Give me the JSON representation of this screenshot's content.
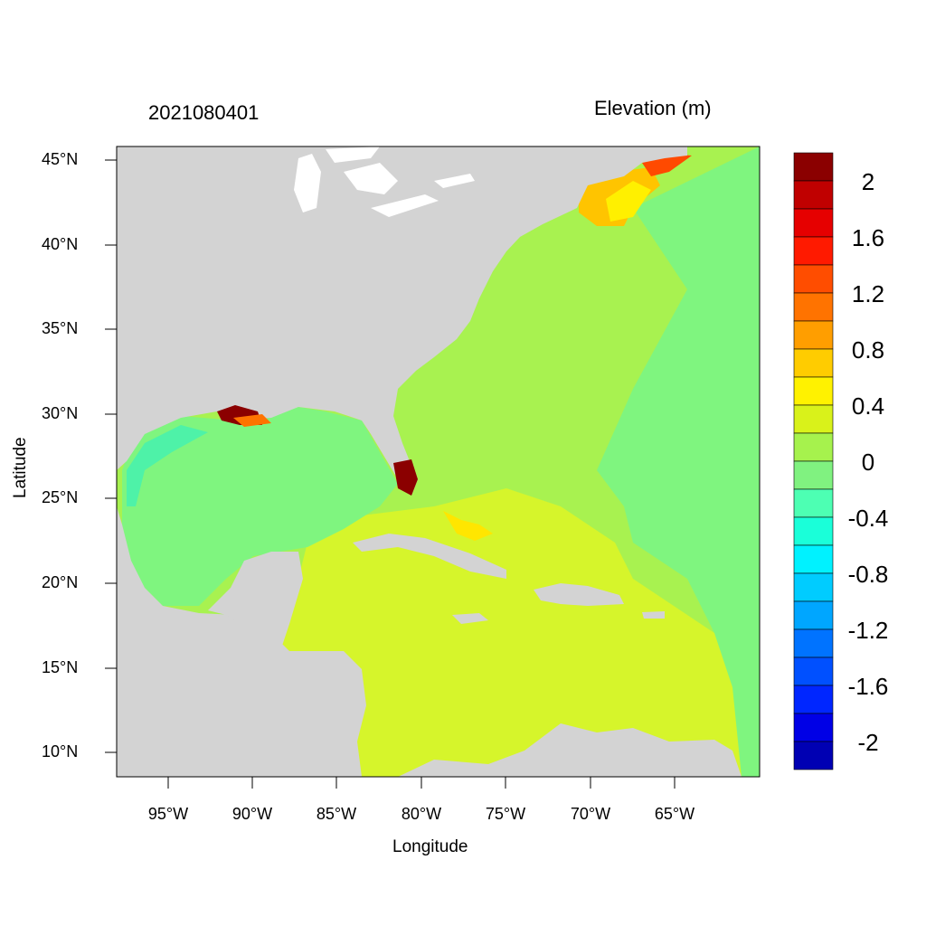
{
  "title_left": "2021080401",
  "title_right": "Elevation (m)",
  "axes": {
    "xlabel": "Longitude",
    "ylabel": "Latitude",
    "xticks": [
      "95°W",
      "90°W",
      "85°W",
      "80°W",
      "75°W",
      "70°W",
      "65°W"
    ],
    "yticks": [
      "45°N",
      "40°N",
      "35°N",
      "30°N",
      "25°N",
      "20°N",
      "15°N",
      "10°N"
    ]
  },
  "colorbar": {
    "labels": [
      "2",
      "1.6",
      "1.2",
      "0.8",
      "0.4",
      "0",
      "-0.4",
      "-0.8",
      "-1.2",
      "-1.6",
      "-2"
    ],
    "colors": [
      "#8b0000",
      "#c00000",
      "#e60000",
      "#ff1a00",
      "#ff4d00",
      "#ff7300",
      "#ff9e00",
      "#ffcc00",
      "#fff200",
      "#d9f21a",
      "#a6f24d",
      "#80f280",
      "#4dffb3",
      "#1affd9",
      "#00f2ff",
      "#00ccff",
      "#00a6ff",
      "#0073ff",
      "#0050ff",
      "#0026ff",
      "#0000e6",
      "#0000b3"
    ]
  },
  "legend_colors": {
    "land": "#d3d3d3",
    "water_mask": "#ffffff"
  }
}
